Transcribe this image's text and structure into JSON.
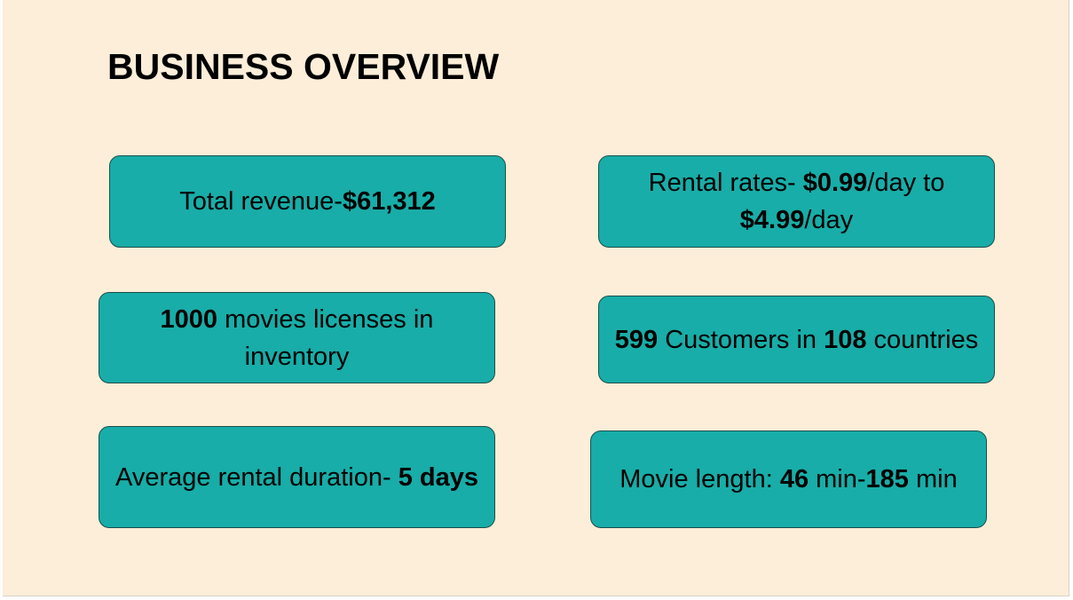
{
  "slide": {
    "title": "BUSINESS OVERVIEW",
    "background_color": "#fdeed9",
    "card_color": "#18ada8",
    "cards": [
      {
        "id": "total-revenue",
        "parts": [
          {
            "text": "Total revenue-",
            "bold": false
          },
          {
            "text": "$61,312",
            "bold": true
          }
        ]
      },
      {
        "id": "rental-rates",
        "parts": [
          {
            "text": "Rental rates- ",
            "bold": false
          },
          {
            "text": "$0.99",
            "bold": true
          },
          {
            "text": "/day to ",
            "bold": false
          },
          {
            "text": "$4.99",
            "bold": true
          },
          {
            "text": "/day",
            "bold": false
          }
        ]
      },
      {
        "id": "movie-inventory",
        "parts": [
          {
            "text": "1000",
            "bold": true
          },
          {
            "text": " movies licenses in inventory",
            "bold": false
          }
        ]
      },
      {
        "id": "customers",
        "parts": [
          {
            "text": "599",
            "bold": true
          },
          {
            "text": " Customers in ",
            "bold": false
          },
          {
            "text": "108",
            "bold": true
          },
          {
            "text": " countries",
            "bold": false
          }
        ]
      },
      {
        "id": "average-rental-duration",
        "parts": [
          {
            "text": "Average rental duration- ",
            "bold": false
          },
          {
            "text": "5 days",
            "bold": true
          }
        ]
      },
      {
        "id": "movie-length",
        "parts": [
          {
            "text": "Movie length: ",
            "bold": false
          },
          {
            "text": "46",
            "bold": true
          },
          {
            "text": " min-",
            "bold": false
          },
          {
            "text": "185",
            "bold": true
          },
          {
            "text": " min",
            "bold": false
          }
        ]
      }
    ]
  }
}
